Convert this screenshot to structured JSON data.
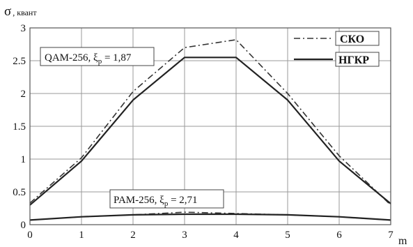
{
  "chart_data": {
    "type": "line",
    "xlim": [
      0,
      7
    ],
    "ylim": [
      0,
      3
    ],
    "x_ticks": [
      0,
      1,
      2,
      3,
      4,
      5,
      6,
      7
    ],
    "y_ticks": [
      0,
      0.5,
      1,
      1.5,
      2,
      2.5,
      3
    ],
    "x_tick_labels": [
      "0",
      "1",
      "2",
      "3",
      "4",
      "5",
      "6",
      "7"
    ],
    "y_tick_labels": [
      "0",
      "0.5",
      "1",
      "1.5",
      "2",
      "2.5",
      "3"
    ],
    "xlabel": "m",
    "ylabel_symbol": "σ",
    "ylabel_unit": ", квант",
    "grid": true,
    "legend_position": "top-right",
    "series": [
      {
        "name": "СКО",
        "style": "dash-dot",
        "color": "#333333",
        "group": "QAM",
        "x": [
          0,
          1,
          2,
          3,
          4,
          5,
          6,
          7
        ],
        "y": [
          0.33,
          1.02,
          2.03,
          2.7,
          2.82,
          2.0,
          1.05,
          0.3
        ]
      },
      {
        "name": "НГКР",
        "style": "solid",
        "color": "#222222",
        "group": "QAM",
        "x": [
          0,
          1,
          2,
          3,
          4,
          5,
          6,
          7
        ],
        "y": [
          0.3,
          0.97,
          1.9,
          2.55,
          2.55,
          1.9,
          0.97,
          0.32
        ]
      },
      {
        "name": "СКО",
        "style": "dash-dot",
        "color": "#333333",
        "group": "PAM",
        "x": [
          0,
          1,
          2,
          3,
          4,
          5,
          6,
          7
        ],
        "y": [
          0.07,
          0.12,
          0.15,
          0.19,
          0.17,
          0.15,
          0.12,
          0.07
        ]
      },
      {
        "name": "НГКР",
        "style": "solid",
        "color": "#222222",
        "group": "PAM",
        "x": [
          0,
          1,
          2,
          3,
          4,
          5,
          6,
          7
        ],
        "y": [
          0.07,
          0.12,
          0.15,
          0.16,
          0.16,
          0.15,
          0.12,
          0.07
        ]
      }
    ],
    "legend": [
      {
        "label": "СКО",
        "style": "dash-dot"
      },
      {
        "label": "НГКР",
        "style": "solid"
      }
    ],
    "annotations": [
      {
        "main": "QAM-256,  ξ",
        "sub": "p",
        "value": " = 1,87"
      },
      {
        "main": "PAM-256,  ξ",
        "sub": "p",
        "value": " = 2,71"
      }
    ]
  }
}
